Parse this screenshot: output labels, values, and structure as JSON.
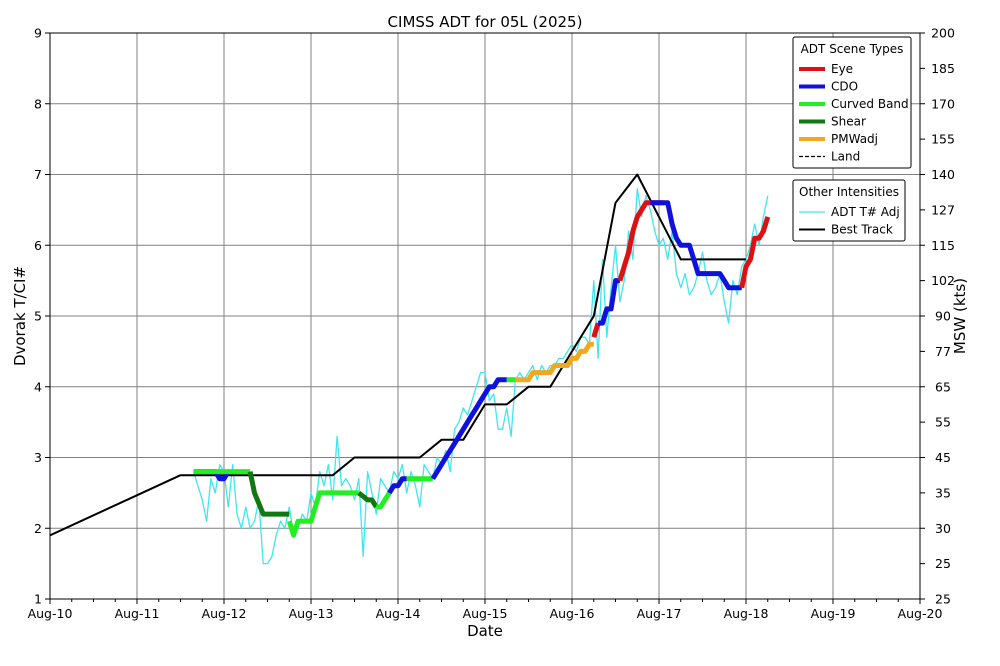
{
  "chart_data": {
    "type": "line",
    "title": "CIMSS ADT for 05L (2025)",
    "xlabel": "Date",
    "ylabel": "Dvorak T/CI#",
    "y2label": "MSW (kts)",
    "xlim": [
      0,
      10
    ],
    "ylim": [
      1,
      9
    ],
    "grid": true,
    "x_ticks": [
      "Aug-10",
      "Aug-11",
      "Aug-12",
      "Aug-13",
      "Aug-14",
      "Aug-15",
      "Aug-16",
      "Aug-17",
      "Aug-18",
      "Aug-19",
      "Aug-20"
    ],
    "y_ticks": [
      1,
      2,
      3,
      4,
      5,
      6,
      7,
      8,
      9
    ],
    "y2_ticks": [
      {
        "t": 1,
        "label": "25"
      },
      {
        "t": 1.5,
        "label": "25"
      },
      {
        "t": 2,
        "label": "30"
      },
      {
        "t": 2.5,
        "label": "35"
      },
      {
        "t": 3,
        "label": "45"
      },
      {
        "t": 3.5,
        "label": "55"
      },
      {
        "t": 4,
        "label": "65"
      },
      {
        "t": 4.5,
        "label": "77"
      },
      {
        "t": 5,
        "label": "90"
      },
      {
        "t": 5.5,
        "label": "102"
      },
      {
        "t": 6,
        "label": "115"
      },
      {
        "t": 6.5,
        "label": "127"
      },
      {
        "t": 7,
        "label": "140"
      },
      {
        "t": 7.5,
        "label": "155"
      },
      {
        "t": 8,
        "label": "170"
      },
      {
        "t": 8.5,
        "label": "185"
      },
      {
        "t": 9,
        "label": "200"
      }
    ],
    "legend_scene": {
      "title": "ADT Scene Types",
      "placement": "top-right",
      "entries": [
        {
          "label": "Eye",
          "color": "#dd1111",
          "style": "thick"
        },
        {
          "label": "CDO",
          "color": "#1111dd",
          "style": "thick"
        },
        {
          "label": "Curved Band",
          "color": "#22ee22",
          "style": "thick"
        },
        {
          "label": "Shear",
          "color": "#117711",
          "style": "thick"
        },
        {
          "label": "PMWadj",
          "color": "#f0a820",
          "style": "thick"
        },
        {
          "label": "Land",
          "color": "#000000",
          "style": "dashed"
        }
      ]
    },
    "legend_other": {
      "title": "Other Intensities",
      "placement": "top-right",
      "entries": [
        {
          "label": "ADT T# Adj",
          "color": "#3ee6f0",
          "style": "thin"
        },
        {
          "label": "Best Track",
          "color": "#000000",
          "style": "solid"
        }
      ]
    },
    "series": [
      {
        "name": "Best Track",
        "color": "#000000",
        "x": [
          0,
          1.5,
          2.25,
          3.25,
          3.5,
          4.25,
          4.5,
          4.75,
          5.0,
          5.25,
          5.5,
          5.75,
          6.0,
          6.25,
          6.5,
          6.75,
          7.0,
          7.25,
          7.5,
          7.75,
          8.0
        ],
        "y": [
          1.9,
          2.75,
          2.75,
          2.75,
          3.0,
          3.0,
          3.25,
          3.25,
          3.75,
          3.75,
          4.0,
          4.0,
          4.5,
          5.0,
          6.6,
          7.0,
          6.4,
          5.8,
          5.8,
          5.8,
          5.8
        ]
      },
      {
        "name": "ADT T# Adj",
        "color": "#3ee6f0",
        "x": [
          1.65,
          1.7,
          1.75,
          1.8,
          1.85,
          1.9,
          1.95,
          2.0,
          2.05,
          2.1,
          2.15,
          2.2,
          2.25,
          2.3,
          2.35,
          2.4,
          2.45,
          2.5,
          2.55,
          2.6,
          2.65,
          2.7,
          2.75,
          2.8,
          2.85,
          2.9,
          2.95,
          3.0,
          3.05,
          3.1,
          3.15,
          3.2,
          3.25,
          3.3,
          3.35,
          3.4,
          3.45,
          3.5,
          3.55,
          3.6,
          3.65,
          3.7,
          3.75,
          3.8,
          3.85,
          3.9,
          3.95,
          4.0,
          4.05,
          4.1,
          4.15,
          4.2,
          4.25,
          4.3,
          4.35,
          4.4,
          4.45,
          4.5,
          4.55,
          4.6,
          4.65,
          4.7,
          4.75,
          4.8,
          4.85,
          4.9,
          4.95,
          5.0,
          5.05,
          5.1,
          5.15,
          5.2,
          5.25,
          5.3,
          5.35,
          5.4,
          5.45,
          5.5,
          5.55,
          5.6,
          5.65,
          5.7,
          5.75,
          5.8,
          5.85,
          5.9,
          5.95,
          6.0,
          6.05,
          6.1,
          6.15,
          6.2,
          6.25,
          6.3,
          6.35,
          6.4,
          6.45,
          6.5,
          6.55,
          6.6,
          6.65,
          6.7,
          6.75,
          6.8,
          6.85,
          6.9,
          6.95,
          7.0,
          7.05,
          7.1,
          7.15,
          7.2,
          7.25,
          7.3,
          7.35,
          7.4,
          7.45,
          7.5,
          7.55,
          7.6,
          7.65,
          7.7,
          7.75,
          7.8,
          7.85,
          7.9,
          7.95,
          8.0,
          8.05,
          8.1,
          8.15,
          8.2,
          8.25
        ],
        "y": [
          2.8,
          2.6,
          2.4,
          2.1,
          2.7,
          2.5,
          2.9,
          2.8,
          2.3,
          2.9,
          2.2,
          2.0,
          2.3,
          2.0,
          2.1,
          2.4,
          1.5,
          1.5,
          1.6,
          1.9,
          2.1,
          2.0,
          2.3,
          1.9,
          2.0,
          2.2,
          2.1,
          2.5,
          2.3,
          2.8,
          2.6,
          2.9,
          2.4,
          3.3,
          2.6,
          2.7,
          2.6,
          2.4,
          2.7,
          1.6,
          2.8,
          2.5,
          2.2,
          2.7,
          2.6,
          2.5,
          2.8,
          2.7,
          2.9,
          2.5,
          2.8,
          2.6,
          2.3,
          2.9,
          2.8,
          2.7,
          3.0,
          2.9,
          3.1,
          2.8,
          3.4,
          3.5,
          3.7,
          3.6,
          3.8,
          4.0,
          4.2,
          4.2,
          3.8,
          3.9,
          3.4,
          3.4,
          3.7,
          3.3,
          4.1,
          4.2,
          4.1,
          4.2,
          4.3,
          4.1,
          4.3,
          4.2,
          4.3,
          4.3,
          4.4,
          4.4,
          4.5,
          4.6,
          4.5,
          4.7,
          4.7,
          4.6,
          5.5,
          4.4,
          5.8,
          4.7,
          5.4,
          6.0,
          5.2,
          5.5,
          6.2,
          5.8,
          6.8,
          6.4,
          6.7,
          6.5,
          6.2,
          6.0,
          6.1,
          5.8,
          6.2,
          5.6,
          5.4,
          5.6,
          5.3,
          5.4,
          5.6,
          5.9,
          5.5,
          5.3,
          5.4,
          5.6,
          5.2,
          4.9,
          5.5,
          5.3,
          5.7,
          5.8,
          6.0,
          6.3,
          6.0,
          6.4,
          6.7
        ],
        "comment_removed": true
      }
    ],
    "scene_segments": [
      {
        "scene": "CDO",
        "x": [
          1.65,
          1.9,
          1.95,
          2.0,
          2.05
        ],
        "y": [
          2.8,
          2.8,
          2.7,
          2.7,
          2.8
        ]
      },
      {
        "scene": "Curved Band",
        "x": [
          1.65,
          1.85,
          2.3
        ],
        "y": [
          2.8,
          2.8,
          2.8
        ]
      },
      {
        "scene": "Shear",
        "x": [
          2.3,
          2.35,
          2.45,
          2.75
        ],
        "y": [
          2.8,
          2.5,
          2.2,
          2.2
        ]
      },
      {
        "scene": "Curved Band",
        "x": [
          2.75,
          2.8,
          2.85,
          2.9,
          3.0,
          3.05,
          3.1,
          3.15
        ],
        "y": [
          2.1,
          1.9,
          2.1,
          2.1,
          2.1,
          2.3,
          2.5,
          2.5
        ]
      },
      {
        "scene": "Curved Band",
        "x": [
          3.15,
          3.55
        ],
        "y": [
          2.5,
          2.5
        ]
      },
      {
        "scene": "Shear",
        "x": [
          3.55,
          3.65,
          3.7,
          3.75
        ],
        "y": [
          2.5,
          2.4,
          2.4,
          2.3
        ]
      },
      {
        "scene": "Curved Band",
        "x": [
          3.75,
          3.8,
          3.85,
          3.9
        ],
        "y": [
          2.3,
          2.3,
          2.4,
          2.5
        ]
      },
      {
        "scene": "CDO",
        "x": [
          3.9,
          3.95,
          4.0,
          4.05,
          4.1
        ],
        "y": [
          2.5,
          2.6,
          2.6,
          2.7,
          2.7
        ]
      },
      {
        "scene": "Curved Band",
        "x": [
          4.1,
          4.4
        ],
        "y": [
          2.7,
          2.7
        ]
      },
      {
        "scene": "CDO",
        "x": [
          4.4,
          4.45,
          4.5,
          4.55,
          4.6,
          4.65,
          4.7,
          4.75,
          4.8,
          4.85,
          4.9,
          4.95,
          5.0,
          5.05,
          5.1,
          5.15,
          5.25
        ],
        "y": [
          2.7,
          2.8,
          2.9,
          3.0,
          3.1,
          3.2,
          3.3,
          3.4,
          3.5,
          3.6,
          3.7,
          3.8,
          3.9,
          4.0,
          4.0,
          4.1,
          4.1
        ]
      },
      {
        "scene": "Curved Band",
        "x": [
          5.25,
          5.35
        ],
        "y": [
          4.1,
          4.1
        ]
      },
      {
        "scene": "PMWadj",
        "x": [
          5.35,
          5.5,
          5.55,
          5.75,
          5.8,
          5.95,
          6.0,
          6.05,
          6.1,
          6.15,
          6.2,
          6.25
        ],
        "y": [
          4.1,
          4.1,
          4.2,
          4.2,
          4.3,
          4.3,
          4.4,
          4.4,
          4.5,
          4.5,
          4.6,
          4.6
        ]
      },
      {
        "scene": "Eye",
        "x": [
          6.25,
          6.3
        ],
        "y": [
          4.7,
          4.9
        ]
      },
      {
        "scene": "CDO",
        "x": [
          6.3,
          6.35,
          6.4,
          6.45,
          6.5,
          6.55
        ],
        "y": [
          4.9,
          4.9,
          5.1,
          5.1,
          5.5,
          5.5
        ]
      },
      {
        "scene": "Eye",
        "x": [
          6.55,
          6.6,
          6.65,
          6.7,
          6.75,
          6.8,
          6.85,
          6.95,
          7.05
        ],
        "y": [
          5.5,
          5.7,
          5.9,
          6.2,
          6.4,
          6.5,
          6.6,
          6.6,
          6.6
        ]
      },
      {
        "scene": "CDO",
        "x": [
          6.9,
          7.1,
          7.15,
          7.2,
          7.25,
          7.35,
          7.4,
          7.45,
          7.55,
          7.65,
          7.7,
          7.75,
          7.8,
          7.9,
          7.95
        ],
        "y": [
          6.6,
          6.6,
          6.3,
          6.1,
          6.0,
          6.0,
          5.8,
          5.6,
          5.6,
          5.6,
          5.6,
          5.5,
          5.4,
          5.4,
          5.4
        ]
      },
      {
        "scene": "Eye",
        "x": [
          7.95,
          8.0,
          8.05,
          8.1,
          8.15,
          8.2,
          8.25
        ],
        "y": [
          5.4,
          5.7,
          5.8,
          6.1,
          6.1,
          6.2,
          6.4
        ]
      }
    ]
  }
}
